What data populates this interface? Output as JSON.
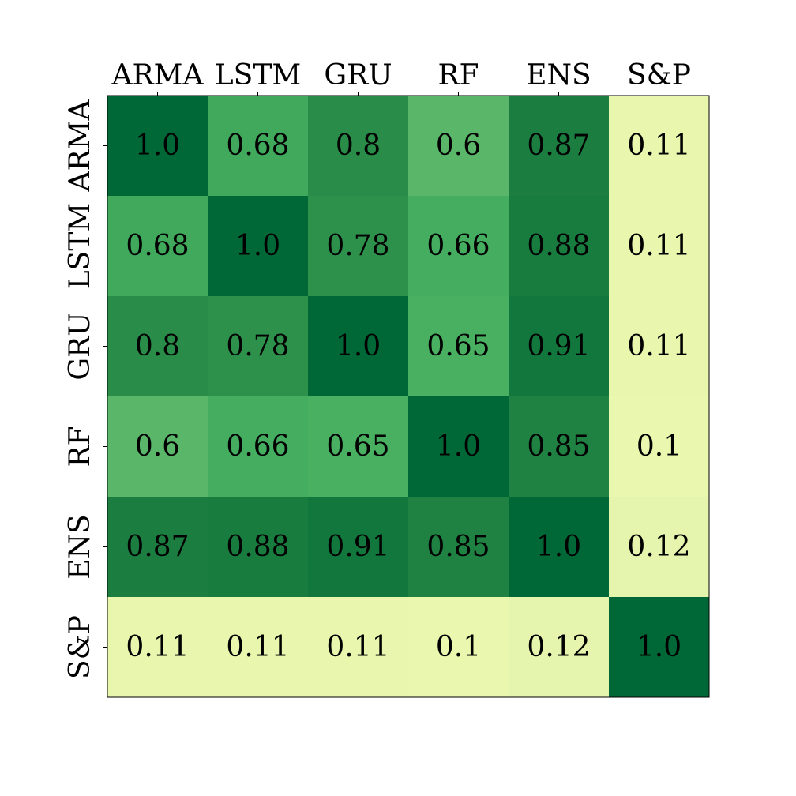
{
  "chart_data": {
    "type": "heatmap",
    "title": "",
    "xlabel": "",
    "ylabel": "",
    "x_categories": [
      "ARMA",
      "LSTM",
      "GRU",
      "RF",
      "ENS",
      "S&P"
    ],
    "y_categories": [
      "ARMA",
      "LSTM",
      "GRU",
      "RF",
      "ENS",
      "S&P"
    ],
    "x_tick_position": "top",
    "y_tick_rotation": "vertical",
    "values": [
      [
        1.0,
        0.68,
        0.8,
        0.6,
        0.87,
        0.11
      ],
      [
        0.68,
        1.0,
        0.78,
        0.66,
        0.88,
        0.11
      ],
      [
        0.8,
        0.78,
        1.0,
        0.65,
        0.91,
        0.11
      ],
      [
        0.6,
        0.66,
        0.65,
        1.0,
        0.85,
        0.1
      ],
      [
        0.87,
        0.88,
        0.91,
        0.85,
        1.0,
        0.12
      ],
      [
        0.11,
        0.11,
        0.11,
        0.1,
        0.12,
        1.0
      ]
    ],
    "value_labels": [
      [
        "1.0",
        "0.68",
        "0.8",
        "0.6",
        "0.87",
        "0.11"
      ],
      [
        "0.68",
        "1.0",
        "0.78",
        "0.66",
        "0.88",
        "0.11"
      ],
      [
        "0.8",
        "0.78",
        "1.0",
        "0.65",
        "0.91",
        "0.11"
      ],
      [
        "0.6",
        "0.66",
        "0.65",
        "1.0",
        "0.85",
        "0.1"
      ],
      [
        "0.87",
        "0.88",
        "0.91",
        "0.85",
        "1.0",
        "0.12"
      ],
      [
        "0.11",
        "0.11",
        "0.11",
        "0.1",
        "0.12",
        "1.0"
      ]
    ],
    "colormap": "YlGn",
    "value_range": [
      0.1,
      1.0
    ],
    "grid": false,
    "legend": "none",
    "colorbar": false
  }
}
